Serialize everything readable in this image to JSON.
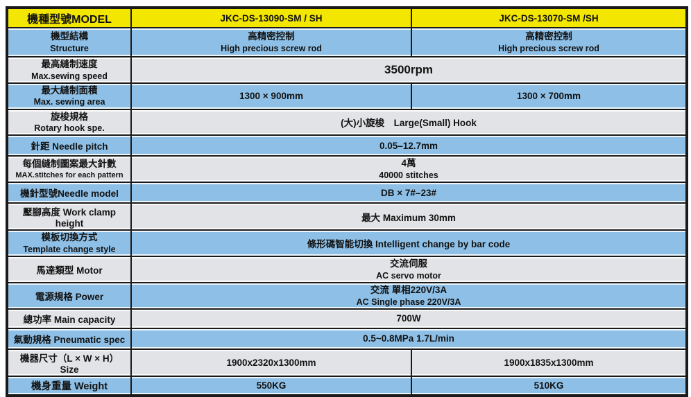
{
  "colors": {
    "yellow": "#f3e600",
    "blue": "#8ec0e7",
    "gray": "#e2e3e6",
    "line": "#1a1a1a",
    "text": "#121212"
  },
  "header": {
    "label": "機種型號MODEL",
    "model_1": "JKC-DS-13090-SM / SH",
    "model_2": "JKC-DS-13070-SM /SH"
  },
  "rows": {
    "structure": {
      "label_zh": "機型結構",
      "label_en": "Structure",
      "col1_zh": "高精密控制",
      "col1_en": "High precious screw rod",
      "col2_zh": "高精密控制",
      "col2_en": "High precious screw rod"
    },
    "speed": {
      "label_zh": "最高縫制速度",
      "label_en": "Max.sewing speed",
      "value": "3500rpm"
    },
    "area": {
      "label_zh": "最大縫制面積",
      "label_en": "Max. sewing area",
      "col1": "1300 × 900mm",
      "col2": "1300 × 700mm"
    },
    "hook": {
      "label_zh": "旋梭規格",
      "label_en": "Rotary hook spe.",
      "value": "(大)小旋梭　Large(Small) Hook"
    },
    "pitch": {
      "label": "針距 Needle pitch",
      "value": "0.05–12.7mm"
    },
    "stitches": {
      "label_zh": "每個縫制圖案最大針數",
      "label_en": "MAX.stitches for each pattern",
      "value_zh": "4萬",
      "value_en": "40000 stitches"
    },
    "needle": {
      "label": "機針型號Needle model",
      "value": "DB × 7#–23#"
    },
    "clamp": {
      "label": "壓腳高度 Work clamp height",
      "value": "最大 Maximum 30mm"
    },
    "template": {
      "label_zh": "模板切換方式",
      "label_en": "Template change style",
      "value": "條形碼智能切換 Intelligent change by bar code"
    },
    "motor": {
      "label": "馬達類型 Motor",
      "value_zh": "交流伺服",
      "value_en": "AC servo motor"
    },
    "power": {
      "label": "電源規格 Power",
      "value_zh": "交流 單相220V/3A",
      "value_en": "AC Single phase 220V/3A"
    },
    "capacity": {
      "label": "總功率 Main capacity",
      "value": "700W"
    },
    "pneumatic": {
      "label": "氣動規格 Pneumatic spec",
      "value": "0.5~0.8MPa 1.7L/min"
    },
    "size": {
      "label": "機器尺寸（L × W × H） Size",
      "col1": "1900x2320x1300mm",
      "col2": "1900x1835x1300mm"
    },
    "weight": {
      "label": "機身重量 Weight",
      "col1": "550KG",
      "col2": "510KG"
    }
  }
}
